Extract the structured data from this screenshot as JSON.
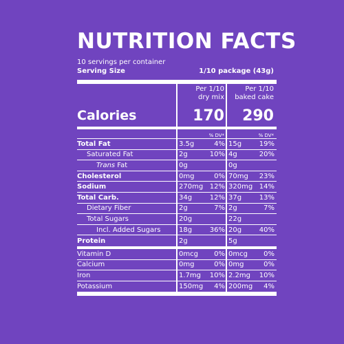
{
  "label": {
    "title": "NUTRITION  FACTS",
    "servings_per_container": "10 servings per container",
    "serving_size_label": "Serving Size",
    "serving_size_value": "1/10 package (43g)",
    "col1_header_line1": "Per 1/10",
    "col1_header_line2": "dry mix",
    "col2_header_line1": "Per 1/10",
    "col2_header_line2": "baked cake",
    "calories_label": "Calories",
    "calories_dry": "170",
    "calories_baked": "290",
    "dv_header": "% DV*",
    "nutrients": [
      {
        "name": "Total Fat",
        "dry": "3.5g",
        "dry_dv": "4%",
        "baked": "15g",
        "baked_dv": "19%"
      },
      {
        "name": "Saturated Fat",
        "dry": "2g",
        "dry_dv": "10%",
        "baked": "4g",
        "baked_dv": "20%"
      },
      {
        "name": "Trans",
        "name_suffix": " Fat",
        "dry": "0g",
        "dry_dv": "",
        "baked": "0g",
        "baked_dv": ""
      },
      {
        "name": "Cholesterol",
        "dry": "0mg",
        "dry_dv": "0%",
        "baked": "70mg",
        "baked_dv": "23%"
      },
      {
        "name": "Sodium",
        "dry": "270mg",
        "dry_dv": "12%",
        "baked": "320mg",
        "baked_dv": "14%"
      },
      {
        "name": "Total Carb.",
        "dry": "34g",
        "dry_dv": "12%",
        "baked": "37g",
        "baked_dv": "13%"
      },
      {
        "name": "Dietary Fiber",
        "dry": "2g",
        "dry_dv": "7%",
        "baked": "2g",
        "baked_dv": "7%"
      },
      {
        "name": "Total Sugars",
        "dry": "20g",
        "dry_dv": "",
        "baked": "22g",
        "baked_dv": ""
      },
      {
        "name": "Incl. Added Sugars",
        "dry": "18g",
        "dry_dv": "36%",
        "baked": "20g",
        "baked_dv": "40%"
      },
      {
        "name": "Protein",
        "dry": "2g",
        "dry_dv": "",
        "baked": "5g",
        "baked_dv": ""
      }
    ],
    "vitamins": [
      {
        "name": "Vitamin D",
        "dry": "0mcg",
        "dry_dv": "0%",
        "baked": "0mcg",
        "baked_dv": "0%"
      },
      {
        "name": "Calcium",
        "dry": "0mg",
        "dry_dv": "0%",
        "baked": "0mg",
        "baked_dv": "0%"
      },
      {
        "name": "Iron",
        "dry": "1.7mg",
        "dry_dv": "10%",
        "baked": "2.2mg",
        "baked_dv": "10%"
      },
      {
        "name": "Potassium",
        "dry": "150mg",
        "dry_dv": "4%",
        "baked": "200mg",
        "baked_dv": "4%"
      }
    ]
  }
}
